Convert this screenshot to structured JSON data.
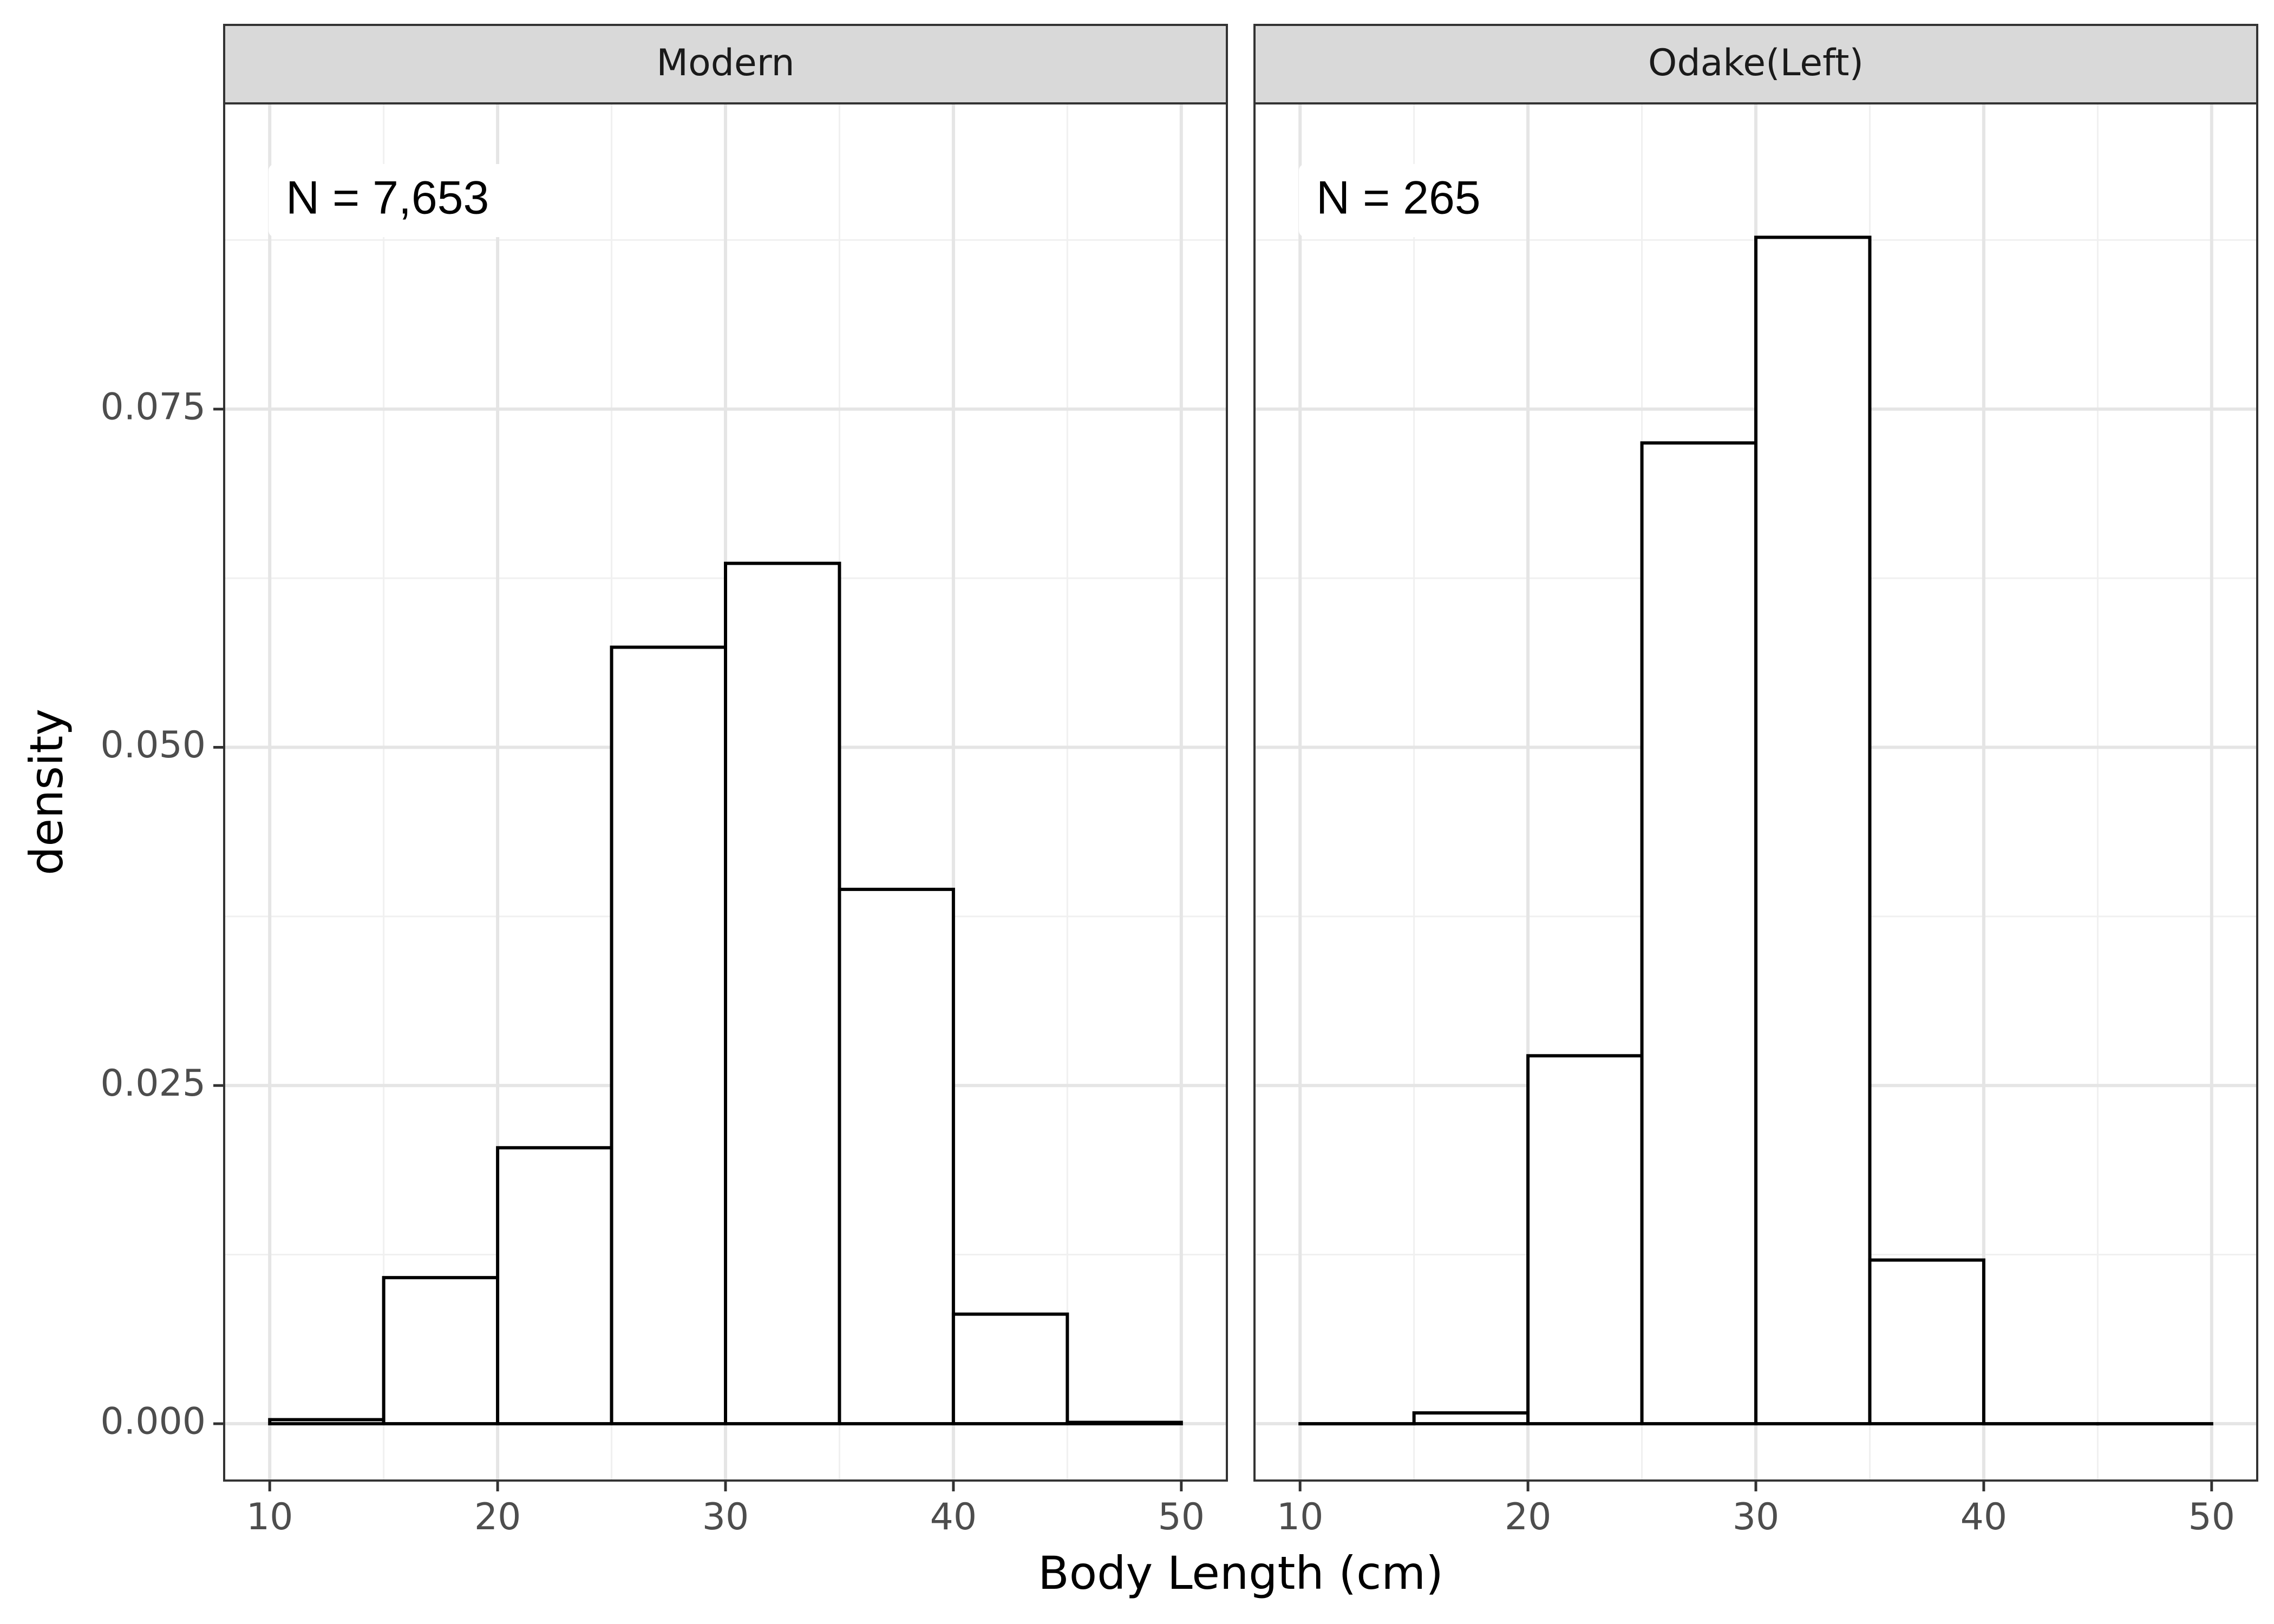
{
  "chart_data": {
    "type": "histogram",
    "x_label": "Body Length (cm)",
    "y_label": "density",
    "x_ticks": [
      "10",
      "20",
      "30",
      "40",
      "50"
    ],
    "y_ticks": [
      "0.000",
      "0.025",
      "0.050",
      "0.075"
    ],
    "x_range": [
      8,
      52
    ],
    "y_range": [
      -0.0042,
      0.0976
    ],
    "x_ticks_num": [
      10,
      20,
      30,
      40,
      50
    ],
    "y_ticks_num": [
      0,
      0.025,
      0.05,
      0.075
    ],
    "x_minor": [
      15,
      25,
      35,
      45
    ],
    "y_minor": [
      0.0125,
      0.0375,
      0.0625,
      0.0875
    ],
    "grid": true,
    "panels": [
      {
        "strip": "Modern",
        "annotation": "N = 7,653",
        "bins": [
          {
            "x0": 10,
            "x1": 15,
            "density": 0.0003
          },
          {
            "x0": 15,
            "x1": 20,
            "density": 0.0108
          },
          {
            "x0": 20,
            "x1": 25,
            "density": 0.0204
          },
          {
            "x0": 25,
            "x1": 30,
            "density": 0.0574
          },
          {
            "x0": 30,
            "x1": 35,
            "density": 0.0636
          },
          {
            "x0": 35,
            "x1": 40,
            "density": 0.0395
          },
          {
            "x0": 40,
            "x1": 45,
            "density": 0.0081
          },
          {
            "x0": 45,
            "x1": 50,
            "density": 0.0001
          }
        ]
      },
      {
        "strip": "Odake(Left)",
        "annotation": "N = 265",
        "bins": [
          {
            "x0": 10,
            "x1": 15,
            "density": 0.0
          },
          {
            "x0": 15,
            "x1": 20,
            "density": 0.0008
          },
          {
            "x0": 20,
            "x1": 25,
            "density": 0.0272
          },
          {
            "x0": 25,
            "x1": 30,
            "density": 0.0725
          },
          {
            "x0": 30,
            "x1": 35,
            "density": 0.0877
          },
          {
            "x0": 35,
            "x1": 40,
            "density": 0.0121
          },
          {
            "x0": 40,
            "x1": 45,
            "density": 0.0
          },
          {
            "x0": 45,
            "x1": 50,
            "density": 0.0
          }
        ]
      }
    ]
  }
}
